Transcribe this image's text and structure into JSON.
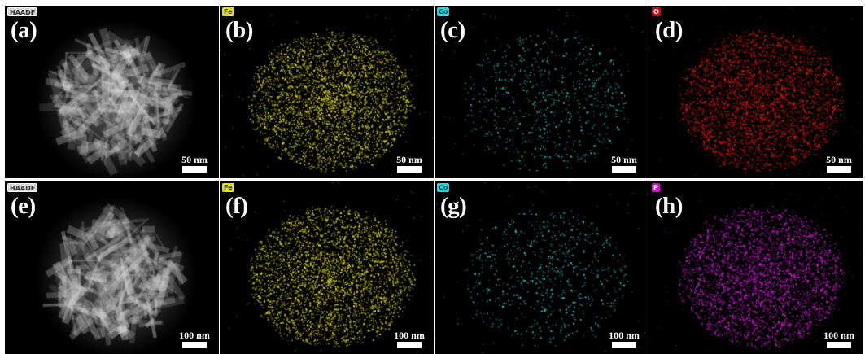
{
  "panels": [
    {
      "letter": "(a)",
      "badge": "HAADF",
      "badge_bg": "#d9d9d9",
      "badge_fg": "#333333",
      "scale": "50 nm",
      "kind": "haadf",
      "color": "#e6e6e6"
    },
    {
      "letter": "(b)",
      "badge": "Fe",
      "badge_bg": "#e8e000",
      "badge_fg": "#333333",
      "scale": "50 nm",
      "kind": "map",
      "color": "#d8d21a"
    },
    {
      "letter": "(c)",
      "badge": "Co",
      "badge_bg": "#20d8e0",
      "badge_fg": "#1a4d55",
      "scale": "50 nm",
      "kind": "map",
      "color": "#2ad6dc"
    },
    {
      "letter": "(d)",
      "badge": "O",
      "badge_bg": "#e00000",
      "badge_fg": "#ffffff",
      "scale": "50 nm",
      "kind": "map",
      "color": "#e0190f"
    },
    {
      "letter": "(e)",
      "badge": "HAADF",
      "badge_bg": "#d9d9d9",
      "badge_fg": "#333333",
      "scale": "100 nm",
      "kind": "haadf",
      "color": "#e6e6e6"
    },
    {
      "letter": "(f)",
      "badge": "Fe",
      "badge_bg": "#e8e000",
      "badge_fg": "#333333",
      "scale": "100 nm",
      "kind": "map",
      "color": "#d8d21a"
    },
    {
      "letter": "(g)",
      "badge": "Co",
      "badge_bg": "#20d8e0",
      "badge_fg": "#1a4d55",
      "scale": "100 nm",
      "kind": "map",
      "color": "#2ad6dc"
    },
    {
      "letter": "(h)",
      "badge": "P",
      "badge_bg": "#e000e0",
      "badge_fg": "#ffffff",
      "scale": "100 nm",
      "kind": "map",
      "color": "#d21ad6"
    }
  ]
}
